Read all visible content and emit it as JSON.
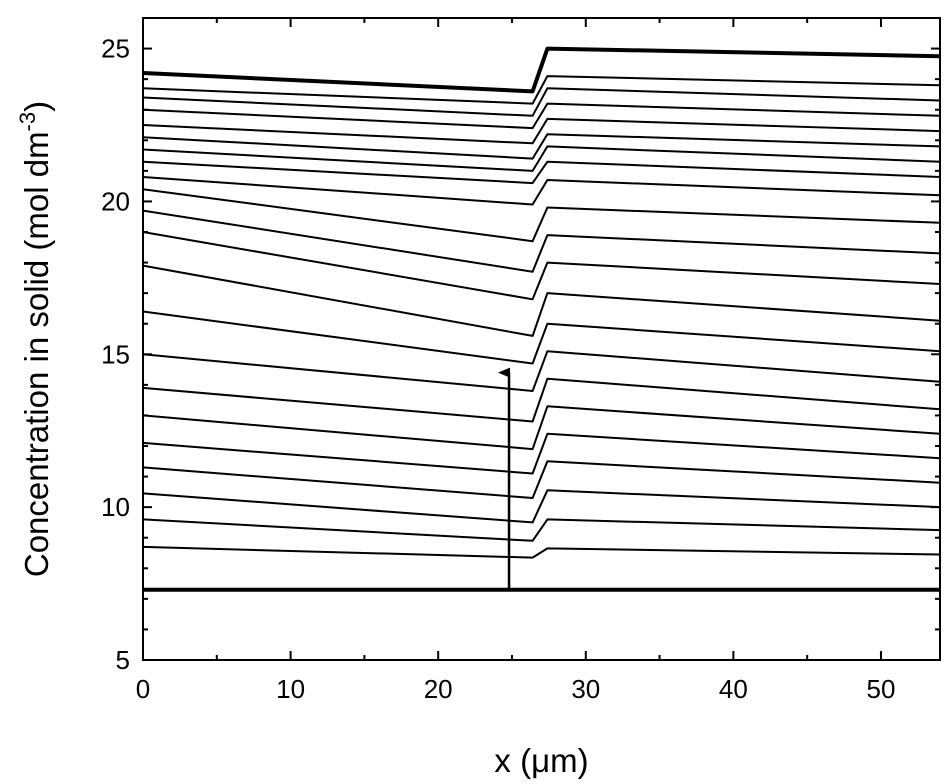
{
  "chart_data": {
    "type": "line",
    "xlabel": "x (μm)",
    "ylabel_main": "Concentration in solid (mol dm",
    "ylabel_exp": "-3",
    "ylabel_close": ")",
    "xlim": [
      0,
      54
    ],
    "ylim": [
      5,
      26
    ],
    "xticks": [
      0,
      10,
      20,
      30,
      40,
      50
    ],
    "xtick_labels": [
      "0",
      "10",
      "20",
      "30",
      "40",
      "50"
    ],
    "yticks": [
      5,
      10,
      15,
      20,
      25
    ],
    "ytick_labels": [
      "5",
      "10",
      "15",
      "20",
      "25"
    ],
    "grid": false,
    "legend": "none",
    "arrow": {
      "x": 24.8,
      "y_from": 7.3,
      "y_to": 14.4
    },
    "boundary_x": [
      26.4,
      27.4
    ],
    "line_color": "#000000",
    "series": [
      {
        "x": [
          0,
          26.4,
          27.4,
          54
        ],
        "y": [
          7.3,
          7.3,
          7.3,
          7.3
        ],
        "bold": true
      },
      {
        "x": [
          0,
          26.4,
          27.4,
          54
        ],
        "y": [
          8.7,
          8.35,
          8.65,
          8.45
        ]
      },
      {
        "x": [
          0,
          26.4,
          27.4,
          54
        ],
        "y": [
          9.6,
          8.9,
          9.6,
          9.25
        ]
      },
      {
        "x": [
          0,
          26.4,
          27.4,
          54
        ],
        "y": [
          10.45,
          9.5,
          10.55,
          10.0
        ]
      },
      {
        "x": [
          0,
          26.4,
          27.4,
          54
        ],
        "y": [
          11.3,
          10.3,
          11.5,
          10.8
        ]
      },
      {
        "x": [
          0,
          26.4,
          27.4,
          54
        ],
        "y": [
          12.1,
          11.1,
          12.4,
          11.6
        ]
      },
      {
        "x": [
          0,
          26.4,
          27.4,
          54
        ],
        "y": [
          13.0,
          11.9,
          13.3,
          12.4
        ]
      },
      {
        "x": [
          0,
          26.4,
          27.4,
          54
        ],
        "y": [
          13.9,
          12.8,
          14.2,
          13.2
        ]
      },
      {
        "x": [
          0,
          26.4,
          27.4,
          54
        ],
        "y": [
          15.0,
          13.8,
          15.1,
          14.1
        ]
      },
      {
        "x": [
          0,
          26.4,
          27.4,
          54
        ],
        "y": [
          16.4,
          14.7,
          16.0,
          15.1
        ]
      },
      {
        "x": [
          0,
          26.4,
          27.4,
          54
        ],
        "y": [
          17.9,
          15.6,
          17.0,
          16.1
        ]
      },
      {
        "x": [
          0,
          26.4,
          27.4,
          54
        ],
        "y": [
          19.0,
          16.8,
          18.0,
          17.3
        ]
      },
      {
        "x": [
          0,
          26.4,
          27.4,
          54
        ],
        "y": [
          19.7,
          17.7,
          18.9,
          18.3
        ]
      },
      {
        "x": [
          0,
          26.4,
          27.4,
          54
        ],
        "y": [
          20.4,
          18.7,
          19.8,
          19.3
        ]
      },
      {
        "x": [
          0,
          26.4,
          27.4,
          54
        ],
        "y": [
          20.8,
          19.9,
          20.7,
          20.2
        ]
      },
      {
        "x": [
          0,
          26.4,
          27.4,
          54
        ],
        "y": [
          21.3,
          20.6,
          21.3,
          20.8
        ]
      },
      {
        "x": [
          0,
          26.4,
          27.4,
          54
        ],
        "y": [
          21.7,
          21.0,
          21.8,
          21.3
        ]
      },
      {
        "x": [
          0,
          26.4,
          27.4,
          54
        ],
        "y": [
          22.1,
          21.4,
          22.2,
          21.8
        ]
      },
      {
        "x": [
          0,
          26.4,
          27.4,
          54
        ],
        "y": [
          22.5,
          21.9,
          22.7,
          22.3
        ]
      },
      {
        "x": [
          0,
          26.4,
          27.4,
          54
        ],
        "y": [
          23.0,
          22.4,
          23.2,
          22.8
        ]
      },
      {
        "x": [
          0,
          26.4,
          27.4,
          54
        ],
        "y": [
          23.4,
          22.8,
          23.7,
          23.3
        ]
      },
      {
        "x": [
          0,
          26.4,
          27.4,
          54
        ],
        "y": [
          23.7,
          23.2,
          24.1,
          23.8
        ]
      },
      {
        "x": [
          0,
          26.4,
          27.4,
          54
        ],
        "y": [
          24.2,
          23.6,
          25.0,
          24.75
        ],
        "bold": true
      }
    ]
  }
}
